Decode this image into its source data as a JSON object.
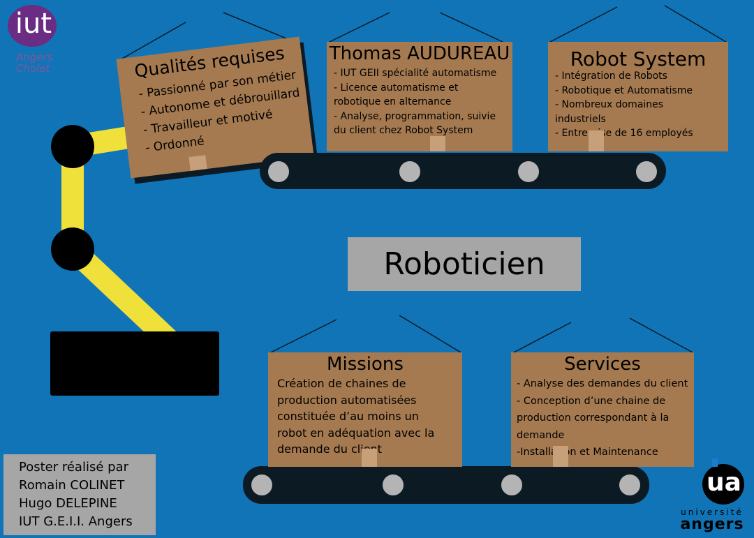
{
  "logos": {
    "iut": {
      "mark": "iut",
      "line1": "Angers",
      "line2": "Cholet"
    },
    "ua": {
      "mark": "ua",
      "line1": "université",
      "line2": "angers"
    }
  },
  "center_title": "Roboticien",
  "qualites": {
    "title": "Qualités requises",
    "items": [
      "- Passionné par son métier",
      "- Autonome et débrouillard",
      "- Travailleur et motivé",
      "- Ordonné"
    ]
  },
  "person": {
    "title": "Thomas AUDUREAU",
    "items": [
      "- IUT GEII spécialité automatisme",
      "- Licence automatisme et",
      "robotique en alternance",
      "- Analyse, programmation, suivie",
      "du client chez Robot System"
    ]
  },
  "company": {
    "title": "Robot System",
    "items": [
      "- Intégration de Robots",
      "- Robotique et Automatisme",
      "- Nombreux domaines",
      "industriels",
      "- Entreprise de 16 employés"
    ]
  },
  "missions": {
    "title": "Missions",
    "items": [
      "Création de chaines de",
      "production automatisées",
      "constituée d’au moins un",
      "robot en adéquation avec la",
      "demande du client"
    ]
  },
  "services": {
    "title": "Services",
    "items": [
      "- Analyse des demandes du client",
      "- Conception d’une chaine de",
      "production correspondant à la",
      "demande",
      "-Installation et Maintenance"
    ]
  },
  "credits": [
    "Poster réalisé par",
    "Romain COLINET",
    "Hugo DELEPINE",
    "IUT G.E.I.I. Angers"
  ],
  "colors": {
    "background": "#1074b6",
    "box": "#a57a50",
    "robot_arm": "#f0e03a",
    "grey": "#a6a6a6"
  }
}
